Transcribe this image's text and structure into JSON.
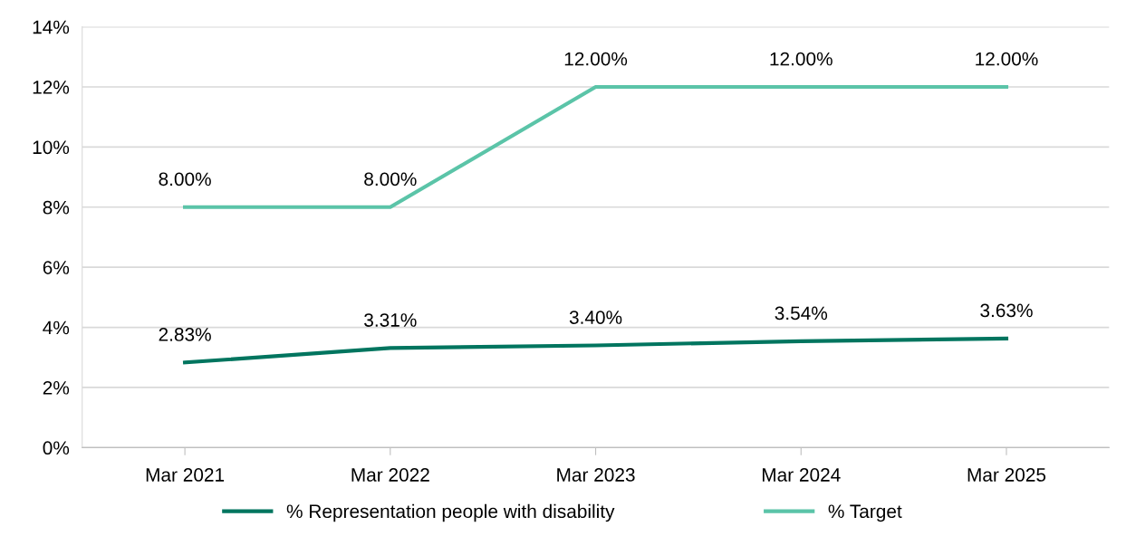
{
  "chart_data": {
    "type": "line",
    "categories": [
      "Mar 2021",
      "Mar 2022",
      "Mar 2023",
      "Mar 2024",
      "Mar 2025"
    ],
    "series": [
      {
        "name": "% Representation people with disability",
        "color": "#00755f",
        "values": [
          2.83,
          3.31,
          3.4,
          3.54,
          3.63
        ],
        "value_labels": [
          "2.83%",
          "3.31%",
          "3.40%",
          "3.54%",
          "3.63%"
        ]
      },
      {
        "name": "% Target",
        "color": "#5bc4a8",
        "values": [
          8.0,
          8.0,
          12.0,
          12.0,
          12.0
        ],
        "value_labels": [
          "8.00%",
          "8.00%",
          "12.00%",
          "12.00%",
          "12.00%"
        ]
      }
    ],
    "ylim": [
      0,
      14
    ],
    "yticks": [
      {
        "value": 0,
        "label": "0%"
      },
      {
        "value": 2,
        "label": "2%"
      },
      {
        "value": 4,
        "label": "4%"
      },
      {
        "value": 6,
        "label": "6%"
      },
      {
        "value": 8,
        "label": "8%"
      },
      {
        "value": 10,
        "label": "10%"
      },
      {
        "value": 12,
        "label": "12%"
      },
      {
        "value": 14,
        "label": "14%"
      }
    ],
    "grid": "y",
    "legend": "bottom",
    "marker": "none",
    "line_style": "solid"
  }
}
